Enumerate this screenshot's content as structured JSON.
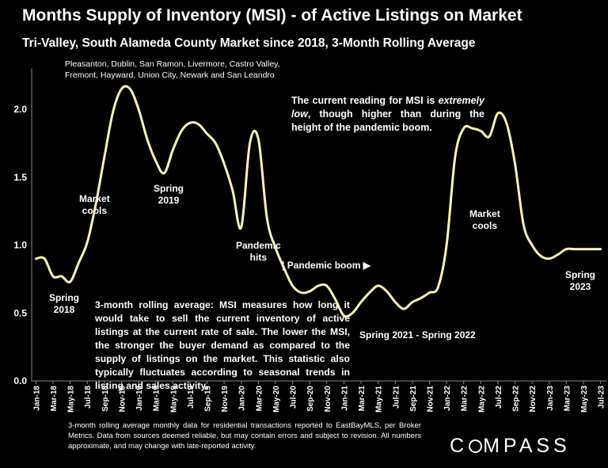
{
  "title": "Months Supply of Inventory (MSI) - of Active Listings on Market",
  "subtitle": "Tri-Valley, South Alameda County Market since 2018, 3-Month Rolling Average",
  "cities_line1": "Pleasanton, Dublin, San Ramon, Livermore, Castro Valley,",
  "cities_line2": "Fremont, Hayward, Union City, Newark and San Leandro",
  "annotations": {
    "spring2018": [
      "Spring",
      "2018"
    ],
    "market_cools_1": [
      "Market",
      "cools"
    ],
    "spring2019": [
      "Spring",
      "2019"
    ],
    "pandemic_hits": [
      "Pandemic",
      "hits"
    ],
    "pandemic_boom": "| Pandemic boom ▶",
    "spring2021_2022": "Spring 2021 - Spring 2022",
    "market_cools_2": [
      "Market",
      "cools"
    ],
    "spring2023": [
      "Spring",
      "2023"
    ]
  },
  "note_pre": "The current reading for MSI is ",
  "note_em": "extremely low",
  "note_post": ", though higher than during the height of the pandemic boom.",
  "explanation": "3-month rolling average: MSI measures how long it would take to sell the current inventory of active listings at the current rate of sale. The lower the MSI, the stronger the buyer demand as compared to the supply of listings on the market. This statistic also typically fluctuates according to seasonal trends in listing and sales activity.",
  "footer": "3-month rolling average monthly data for residential transactions reported to EastBayMLS, per Broker Metrics. Data from sources deemed reliable, but may contain errors and subject to revision. All numbers approximate, and may change with late-reported activity.",
  "logo": {
    "pre": "C",
    "post": "MPASS"
  },
  "colors": {
    "background": "#000000",
    "line": "#fff2b0",
    "text": "#ffffff",
    "axis": "#888888"
  },
  "chart_data": {
    "type": "line",
    "title": "Months Supply of Inventory (MSI) - of Active Listings on Market",
    "ylim": [
      0,
      2.3
    ],
    "yticks": [
      "0.0",
      "0.5",
      "1.0",
      "1.5",
      "2.0"
    ],
    "ytick_values": [
      0,
      0.5,
      1.0,
      1.5,
      2.0
    ],
    "grid": false,
    "xtick_labels": [
      "Jan-18",
      "Mar-18",
      "May-18",
      "Jul-18",
      "Sep-18",
      "Nov-18",
      "Jan-19",
      "Mar-19",
      "May-19",
      "Jul-19",
      "Sep-19",
      "Nov-19",
      "Jan-20",
      "Mar-20",
      "May-20",
      "Jul-20",
      "Sep-20",
      "Nov-20",
      "Jan-21",
      "Mar-21",
      "May-21",
      "Jul-21",
      "Sep-21",
      "Nov-21",
      "Jan-22",
      "Mar-22",
      "May-22",
      "Jul-22",
      "Sep-22",
      "Nov-22",
      "Jan-23",
      "Mar-23",
      "May-23",
      "Jul-23"
    ],
    "series": [
      {
        "x": [
          "Jan-18",
          "Feb-18",
          "Mar-18",
          "Apr-18",
          "May-18",
          "Jun-18",
          "Jul-18",
          "Aug-18",
          "Sep-18",
          "Oct-18",
          "Nov-18",
          "Dec-18",
          "Jan-19",
          "Feb-19",
          "Mar-19",
          "Apr-19",
          "May-19",
          "Jun-19",
          "Jul-19",
          "Aug-19",
          "Sep-19",
          "Oct-19",
          "Nov-19",
          "Dec-19",
          "Jan-20",
          "Feb-20",
          "Mar-20",
          "Apr-20",
          "May-20",
          "Jun-20",
          "Jul-20",
          "Aug-20",
          "Sep-20",
          "Oct-20",
          "Nov-20",
          "Dec-20",
          "Jan-21",
          "Feb-21",
          "Mar-21",
          "Apr-21",
          "May-21",
          "Jun-21",
          "Jul-21",
          "Aug-21",
          "Sep-21",
          "Oct-21",
          "Nov-21",
          "Dec-21",
          "Jan-22",
          "Feb-22",
          "Mar-22",
          "Apr-22",
          "May-22",
          "Jun-22",
          "Jul-22",
          "Aug-22",
          "Sep-22",
          "Oct-22",
          "Nov-22",
          "Dec-22",
          "Jan-23",
          "Feb-23",
          "Mar-23",
          "Apr-23",
          "May-23",
          "Jun-23",
          "Jul-23"
        ],
        "values": [
          0.9,
          0.9,
          0.77,
          0.77,
          0.73,
          0.87,
          1.02,
          1.3,
          1.65,
          1.98,
          2.15,
          2.15,
          2.0,
          1.78,
          1.62,
          1.53,
          1.7,
          1.84,
          1.9,
          1.89,
          1.82,
          1.75,
          1.6,
          1.4,
          1.13,
          1.75,
          1.78,
          1.2,
          0.98,
          0.83,
          0.7,
          0.65,
          0.66,
          0.7,
          0.7,
          0.6,
          0.48,
          0.5,
          0.58,
          0.65,
          0.7,
          0.66,
          0.58,
          0.53,
          0.58,
          0.61,
          0.65,
          0.69,
          1.0,
          1.65,
          1.86,
          1.86,
          1.84,
          1.8,
          1.97,
          1.9,
          1.6,
          1.15,
          1.0,
          0.92,
          0.9,
          0.93,
          0.97,
          0.97,
          0.97,
          0.97,
          0.97
        ]
      }
    ]
  }
}
